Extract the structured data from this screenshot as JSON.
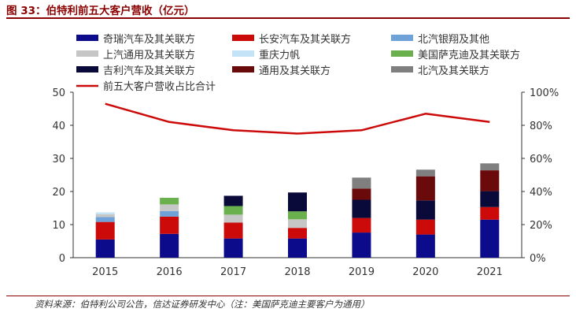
{
  "figure": {
    "title": "图 33：伯特利前五大客户营收（亿元）",
    "source": "资料来源：伯特利公司公告，信达证券研发中心（注：美国萨克迪主要客户为通用）"
  },
  "chart_data": {
    "type": "bar",
    "stacked": true,
    "categories": [
      "2015",
      "2016",
      "2017",
      "2018",
      "2019",
      "2020",
      "2021"
    ],
    "ylim": [
      0,
      50
    ],
    "y_ticks": [
      0,
      10,
      20,
      30,
      40,
      50
    ],
    "y2lim": [
      0,
      100
    ],
    "y2_ticks": [
      "0%",
      "20%",
      "40%",
      "60%",
      "80%",
      "100%"
    ],
    "legend_position": "top",
    "grid": false,
    "series": [
      {
        "name": "奇瑞汽车及其关联方",
        "color": "#0b0b8c",
        "values": [
          5.5,
          7.2,
          5.8,
          5.8,
          7.6,
          7.0,
          11.5
        ]
      },
      {
        "name": "长安汽车及其关联方",
        "color": "#cc0a0a",
        "values": [
          5.3,
          5.2,
          4.8,
          3.2,
          4.4,
          4.5,
          3.8
        ]
      },
      {
        "name": "北汽银翔及其他",
        "color": "#6fa2d8",
        "values": [
          1.5,
          1.7,
          0,
          0,
          0,
          0,
          0
        ]
      },
      {
        "name": "上汽通用及其关联方",
        "color": "#c6c6c6",
        "values": [
          0.8,
          2.0,
          2.4,
          2.6,
          0,
          0,
          0
        ]
      },
      {
        "name": "重庆力帆",
        "color": "#c4e3f6",
        "values": [
          0.6,
          0,
          0,
          0,
          0,
          0,
          0
        ]
      },
      {
        "name": "美国萨克迪及其关联方",
        "color": "#6ab04c",
        "values": [
          0,
          2.0,
          2.6,
          2.4,
          0,
          0,
          0
        ]
      },
      {
        "name": "吉利汽车及其关联方",
        "color": "#0a0a3a",
        "values": [
          0,
          0,
          3.1,
          5.7,
          5.5,
          5.8,
          4.8
        ]
      },
      {
        "name": "通用及其关联方",
        "color": "#6b0a0a",
        "values": [
          0,
          0,
          0,
          0,
          3.4,
          7.3,
          6.3
        ]
      },
      {
        "name": "北汽及其关联方",
        "color": "#7f7f7f",
        "values": [
          0,
          0,
          0,
          0,
          3.3,
          2.0,
          2.1
        ]
      }
    ],
    "line_series": {
      "name": "前五大客户营收占比合计",
      "color": "#cc0a0a",
      "axis": "right",
      "values": [
        93,
        82,
        77,
        75,
        77,
        87,
        82
      ]
    }
  }
}
